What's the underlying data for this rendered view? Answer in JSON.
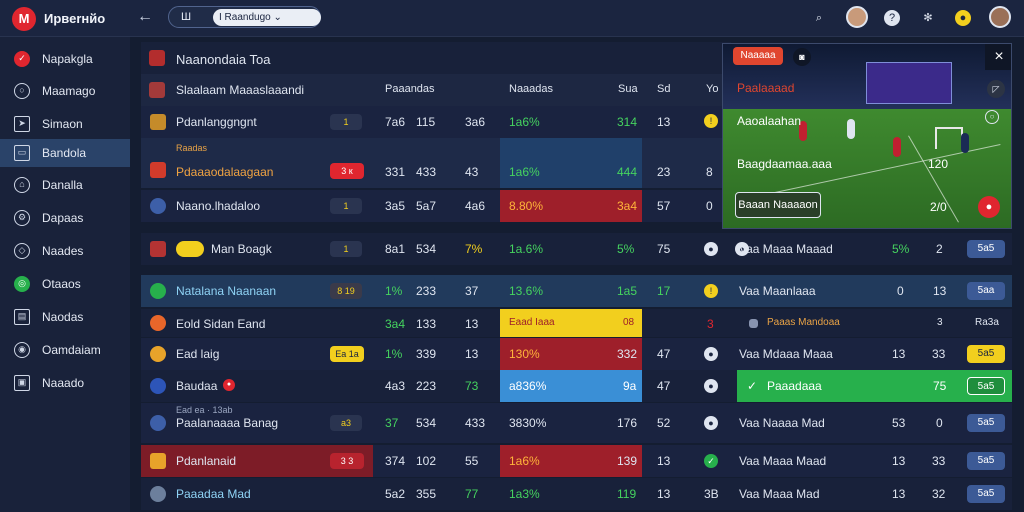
{
  "app": {
    "logo_letter": "M",
    "title": "Ирвеrнйо"
  },
  "header": {
    "tab_left": "Ш",
    "tab_right": "I Raandugo",
    "tab_chevron": "⌄"
  },
  "sidebar": {
    "items": [
      {
        "label": "Napakgla",
        "icon": "shield-icon"
      },
      {
        "label": "Maamago",
        "icon": "search-icon"
      },
      {
        "label": "Simaon",
        "icon": "send-icon"
      },
      {
        "label": "Bandola",
        "icon": "chat-icon"
      },
      {
        "label": "Danalla",
        "icon": "home-icon"
      },
      {
        "label": "Dapaas",
        "icon": "settings-icon"
      },
      {
        "label": "Naades",
        "icon": "tag-icon"
      },
      {
        "label": "Otaaos",
        "icon": "globe-icon"
      },
      {
        "label": "Naodas",
        "icon": "inbox-icon"
      },
      {
        "label": "Oamdaiam",
        "icon": "grid-icon"
      },
      {
        "label": "Naaado",
        "icon": "image-icon"
      }
    ]
  },
  "table": {
    "title": "Naanondaia Toa",
    "headers": {
      "team": "Slaalaam Maaaslaaandi",
      "c1": "Paaandas",
      "c2": "Naaadas",
      "c3": "Sua",
      "c4": "Sd",
      "c5": "Yo"
    },
    "rows": [
      {
        "team": "Pdanlanggngnt",
        "badge": "1",
        "v1": "7a6",
        "v2": "115",
        "v3": "3a6",
        "pct": "1a6%",
        "v4": "314",
        "v5": "13",
        "sub": ""
      },
      {
        "team": "Pdaaaodalaagaan",
        "badge": "3 к",
        "v1": "331",
        "v2": "433",
        "v3": "43",
        "pct": "1a6%",
        "v4": "444",
        "v5": "23",
        "v6": "8",
        "above": "Raadas"
      },
      {
        "team": "Naano.lhadaloo",
        "badge": "1",
        "v1": "3a5",
        "v2": "5a7",
        "v3": "4a6",
        "pct": "8.80%",
        "v4": "3a4",
        "v5": "57",
        "v6": "0"
      },
      {
        "team": "Man Boagk",
        "badge": "1",
        "v1": "8a1",
        "v2": "534",
        "v3": "7%",
        "pct": "1a.6%",
        "v4": "5%",
        "v5": "75"
      },
      {
        "team": "Natalana Naanaan",
        "badge": "8 19",
        "v1": "1%",
        "v2": "233",
        "v3": "37",
        "pct": "13.6%",
        "v4": "1a5",
        "v5": "17"
      },
      {
        "team": "Eold Sidan Eand",
        "v1": "3a4",
        "v2": "133",
        "v3": "13",
        "pct": "Eaad Iaaa",
        "v4": "08",
        "v5": "3"
      },
      {
        "team": "Ead laig",
        "badge": "Ea 1a",
        "v1": "1%",
        "v2": "339",
        "v3": "13",
        "pct": "130%",
        "v4": "332",
        "v5": "47"
      },
      {
        "team": "Baudaa",
        "v1": "4a3",
        "v2": "223",
        "v3": "73",
        "pct": "a836%",
        "v4": "9a",
        "v5": "47"
      },
      {
        "team": "Paalanaaaa Banag",
        "badge": "a3",
        "v1": "37",
        "v2": "534",
        "v3": "433",
        "pct": "3830%",
        "v4": "176",
        "v5": "52",
        "above": "Ead ea · 13ab"
      },
      {
        "team": "Pdanlanaid",
        "badge": "3 3",
        "v1": "374",
        "v2": "102",
        "v3": "55",
        "pct": "1a6%",
        "v4": "139",
        "v5": "13"
      },
      {
        "team": "Paaadaa Mad",
        "v1": "5a2",
        "v2": "355",
        "v3": "77",
        "pct": "1a3%",
        "v4": "119",
        "v5": "13",
        "v6": "3B"
      }
    ]
  },
  "right_rows": [
    {
      "label": "Vaa Maaa Maaad",
      "v1": "5%",
      "v2": "2",
      "chip": "5a5"
    },
    {
      "label": "Vaa Maanlaaa",
      "v1": "0",
      "v2": "13",
      "chip": "5aa"
    },
    {
      "label": "Paaas Mandoaa",
      "v1": "3",
      "v2": "",
      "chip": "Ra3a"
    },
    {
      "label": "Vaa Mdaaa Maaa",
      "v1": "13",
      "v2": "33",
      "chip": "5a5"
    },
    {
      "label": "Paaadaaa",
      "v1": "75",
      "v2": "",
      "chip": "5a5"
    },
    {
      "label": "Vaa Naaaa Mad",
      "v1": "53",
      "v2": "0",
      "chip": "5a5"
    },
    {
      "label": "Vaa Maaa Maad",
      "v1": "13",
      "v2": "33",
      "chip": "5a5"
    },
    {
      "label": "Vaa Maaa Mad",
      "v1": "13",
      "v2": "32",
      "chip": "5a5"
    }
  ],
  "video": {
    "live_badge": "Naaaaa",
    "close": "×",
    "title": "Paalaaaad",
    "sub1": "Aaoalaahan",
    "sub2": "Baagdaamaa.aaa",
    "score_a": "120",
    "score_b": "2/0",
    "caption": "Baaan Naaaaon"
  },
  "colors": {
    "accent_red": "#e0262f",
    "accent_green": "#27b04c",
    "highlight_yellow": "#f2cf1e",
    "highlight_blue": "#3a8fd6",
    "highlight_red": "#9e1f2a"
  }
}
